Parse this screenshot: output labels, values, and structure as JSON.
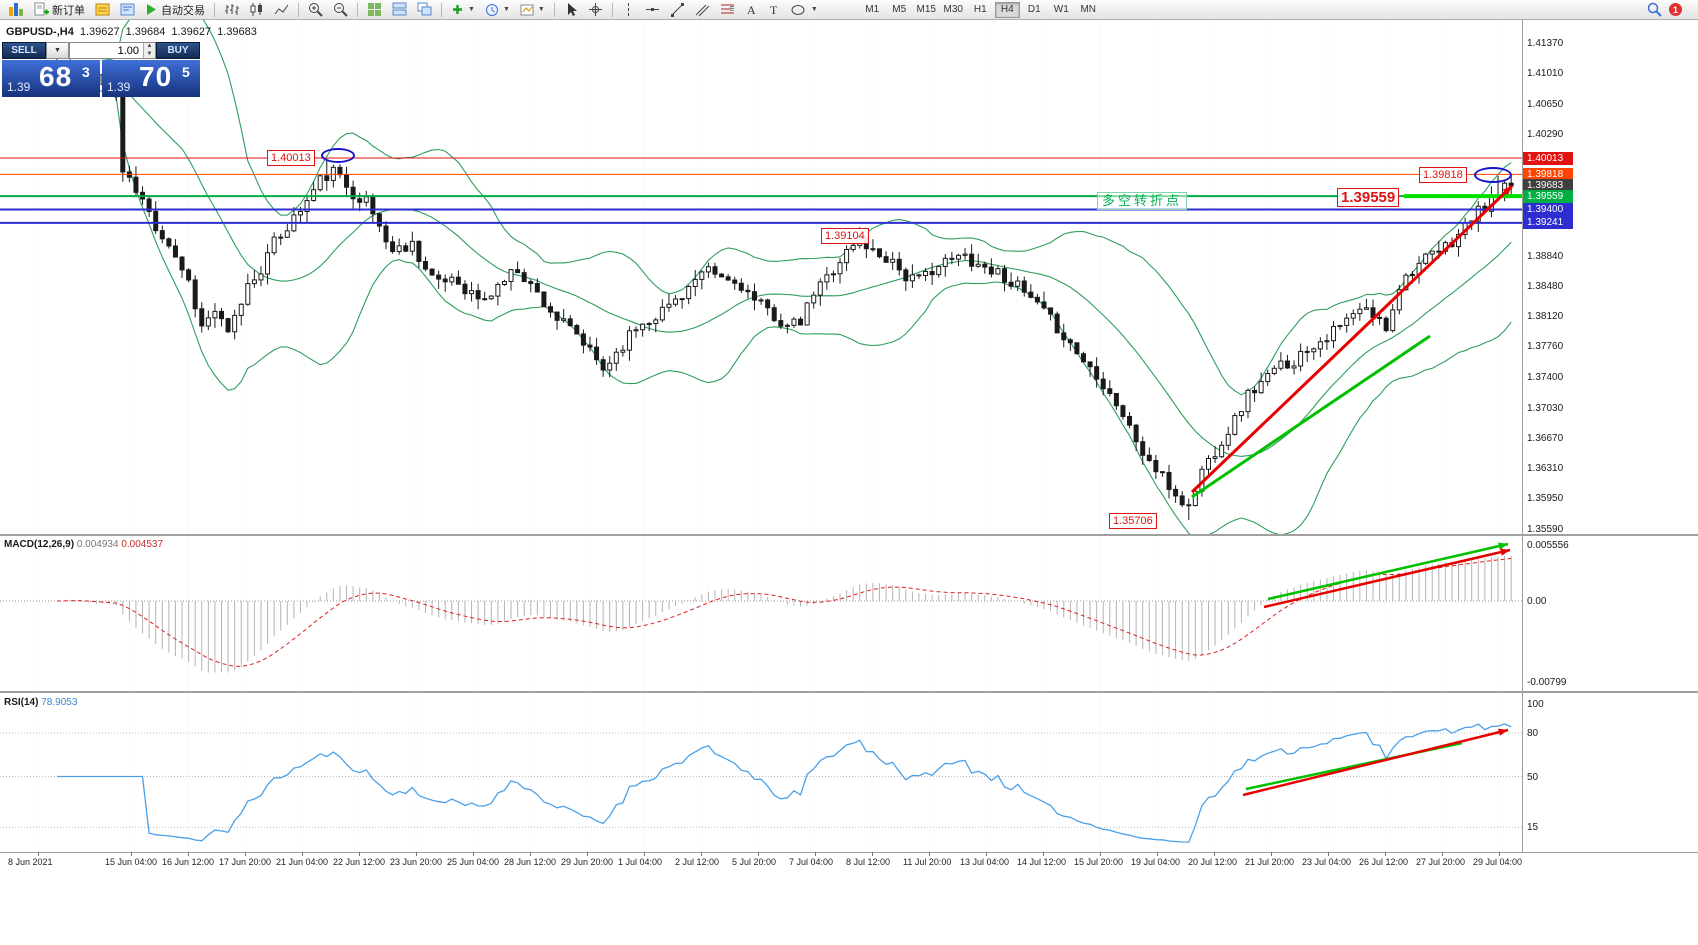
{
  "toolbar": {
    "new_order_label": "新订单",
    "autotrading_label": "自动交易",
    "timeframes": [
      "M1",
      "M5",
      "M15",
      "M30",
      "H1",
      "H4",
      "D1",
      "W1",
      "MN"
    ],
    "active_timeframe": "H4",
    "notification_badge": "1"
  },
  "quote_line": {
    "symbol_period": "GBPUSD-,H4",
    "open": "1.39627",
    "high": "1.39684",
    "low": "1.39627",
    "close": "1.39683"
  },
  "trade_widget": {
    "sell_label": "SELL",
    "buy_label": "BUY",
    "volume": "1.00",
    "sell_price": {
      "prefix": "1.39",
      "big": "68",
      "sup": "3"
    },
    "buy_price": {
      "prefix": "1.39",
      "big": "70",
      "sup": "5"
    }
  },
  "annotations": {
    "resistance_label": "1.40013",
    "recent_high_label": "1.39818",
    "turning_level_label": "1.39559",
    "mid_high_label": "1.39104",
    "major_low_label": "1.35706",
    "turning_point_text": "多空转折点"
  },
  "indicator_labels": {
    "macd_name": "MACD(12,26,9)",
    "macd_main_value": "0.004934",
    "macd_signal_value": "0.004537",
    "rsi_name": "RSI(14)",
    "rsi_value": "78.9053"
  },
  "price_scale": {
    "plain_labels": [
      "1.41370",
      "1.41010",
      "1.40650",
      "1.40290",
      "1.38840",
      "1.38480",
      "1.38120",
      "1.37760",
      "1.37400",
      "1.37030",
      "1.36670",
      "1.36310",
      "1.35950",
      "1.35590"
    ],
    "markers": [
      {
        "text": "1.40013",
        "color": "#e31212",
        "line": 1,
        "width": 1
      },
      {
        "text": "1.39818",
        "color": "#ff4300",
        "line": 1,
        "width": 1
      },
      {
        "text": "1.39683",
        "color": "#3f3f3f",
        "line": 0,
        "width": 0
      },
      {
        "text": "1.39559",
        "color": "#00ae44",
        "line": 1,
        "width": 2
      },
      {
        "text": "1.39400",
        "color": "#2d2dd0",
        "line": 1,
        "width": 2
      },
      {
        "text": "1.39241",
        "color": "#2d2dd0",
        "line": 1,
        "width": 2
      }
    ],
    "macd_scale": [
      "0.005556",
      "0.00",
      "-0.00799"
    ],
    "rsi_scale": [
      "100",
      "80",
      "50",
      "15"
    ]
  },
  "time_axis": [
    "8 Jun 2021",
    "15 Jun 04:00",
    "16 Jun 12:00",
    "17 Jun 20:00",
    "21 Jun 04:00",
    "22 Jun 12:00",
    "23 Jun 20:00",
    "25 Jun 04:00",
    "28 Jun 12:00",
    "29 Jun 20:00",
    "1 Jul 04:00",
    "2 Jul 12:00",
    "5 Jul 20:00",
    "7 Jul 04:00",
    "8 Jul 12:00",
    "11 Jul 20:00",
    "13 Jul 04:00",
    "14 Jul 12:00",
    "15 Jul 20:00",
    "19 Jul 04:00",
    "20 Jul 12:00",
    "21 Jul 20:00",
    "23 Jul 04:00",
    "26 Jul 12:00",
    "27 Jul 20:00",
    "29 Jul 04:00"
  ],
  "chart_data": {
    "type": "candlestick",
    "title": "GBPUSD H4 with Bollinger Bands, MACD(12,26,9) and RSI(14)",
    "symbol": "GBPUSD",
    "timeframe": "H4",
    "date_range": [
      "8 Jun 2021",
      "29 Jul 2021"
    ],
    "candle_count": 222,
    "noise_seed": 11,
    "y_axis": {
      "top": 1.4137,
      "bottom": 1.3559
    },
    "key_prices": {
      "resistance": 1.40013,
      "recent_high": 1.39818,
      "current_close": 1.39683,
      "turning_point": 1.39559,
      "support_1": 1.394,
      "support_2": 1.39241,
      "mid_swing_high": 1.39104,
      "major_low": 1.35706
    },
    "price_path": [
      [
        0,
        1.4105
      ],
      [
        2,
        1.4115
      ],
      [
        4,
        1.4085
      ],
      [
        7,
        1.41
      ],
      [
        9,
        1.4075
      ],
      [
        10,
        1.3985
      ],
      [
        13,
        1.395
      ],
      [
        15,
        1.392
      ],
      [
        17,
        1.39
      ],
      [
        20,
        1.3855
      ],
      [
        22,
        1.38
      ],
      [
        24,
        1.382
      ],
      [
        26,
        1.379
      ],
      [
        29,
        1.385
      ],
      [
        31,
        1.387
      ],
      [
        33,
        1.39
      ],
      [
        35,
        1.392
      ],
      [
        38,
        1.395
      ],
      [
        40,
        1.3975
      ],
      [
        42,
        1.3985
      ],
      [
        45,
        1.396
      ],
      [
        47,
        1.395
      ],
      [
        49,
        1.392
      ],
      [
        51,
        1.389
      ],
      [
        54,
        1.39
      ],
      [
        56,
        1.387
      ],
      [
        58,
        1.385
      ],
      [
        60,
        1.386
      ],
      [
        63,
        1.384
      ],
      [
        65,
        1.383
      ],
      [
        67,
        1.385
      ],
      [
        70,
        1.387
      ],
      [
        72,
        1.385
      ],
      [
        74,
        1.383
      ],
      [
        76,
        1.381
      ],
      [
        79,
        1.379
      ],
      [
        81,
        1.377
      ],
      [
        83,
        1.375
      ],
      [
        86,
        1.378
      ],
      [
        88,
        1.38
      ],
      [
        90,
        1.381
      ],
      [
        92,
        1.382
      ],
      [
        95,
        1.384
      ],
      [
        97,
        1.3855
      ],
      [
        99,
        1.3865
      ],
      [
        102,
        1.3855
      ],
      [
        104,
        1.385
      ],
      [
        106,
        1.383
      ],
      [
        108,
        1.382
      ],
      [
        111,
        1.38
      ],
      [
        113,
        1.3805
      ],
      [
        115,
        1.384
      ],
      [
        118,
        1.387
      ],
      [
        120,
        1.389
      ],
      [
        122,
        1.3905
      ],
      [
        124,
        1.389
      ],
      [
        127,
        1.388
      ],
      [
        129,
        1.386
      ],
      [
        131,
        1.3855
      ],
      [
        133,
        1.387
      ],
      [
        136,
        1.388
      ],
      [
        138,
        1.3885
      ],
      [
        140,
        1.3875
      ],
      [
        143,
        1.3865
      ],
      [
        145,
        1.3855
      ],
      [
        147,
        1.384
      ],
      [
        149,
        1.3825
      ],
      [
        152,
        1.38
      ],
      [
        154,
        1.378
      ],
      [
        156,
        1.376
      ],
      [
        158,
        1.3745
      ],
      [
        161,
        1.371
      ],
      [
        163,
        1.368
      ],
      [
        165,
        1.365
      ],
      [
        168,
        1.362
      ],
      [
        170,
        1.36
      ],
      [
        172,
        1.3585
      ],
      [
        174,
        1.363
      ],
      [
        177,
        1.3665
      ],
      [
        179,
        1.369
      ],
      [
        181,
        1.372
      ],
      [
        184,
        1.374
      ],
      [
        186,
        1.3755
      ],
      [
        188,
        1.376
      ],
      [
        190,
        1.3775
      ],
      [
        193,
        1.379
      ],
      [
        195,
        1.38
      ],
      [
        197,
        1.3815
      ],
      [
        199,
        1.382
      ],
      [
        202,
        1.38
      ],
      [
        204,
        1.385
      ],
      [
        206,
        1.387
      ],
      [
        209,
        1.3885
      ],
      [
        211,
        1.3895
      ],
      [
        213,
        1.391
      ],
      [
        215,
        1.393
      ],
      [
        218,
        1.395
      ],
      [
        220,
        1.3965
      ],
      [
        221,
        1.39683
      ]
    ],
    "overlays": {
      "bollinger_bands": {
        "period": 20,
        "deviation": 2,
        "color": "#2e9e5b"
      }
    },
    "macd": {
      "params": [
        12,
        26,
        9
      ],
      "current_main": 0.004934,
      "current_signal": 0.004537,
      "scale_top": 0.005556,
      "scale_bottom": -0.00799
    },
    "rsi": {
      "period": 14,
      "current": 78.9053,
      "scale": [
        100,
        80,
        50,
        15
      ]
    }
  }
}
